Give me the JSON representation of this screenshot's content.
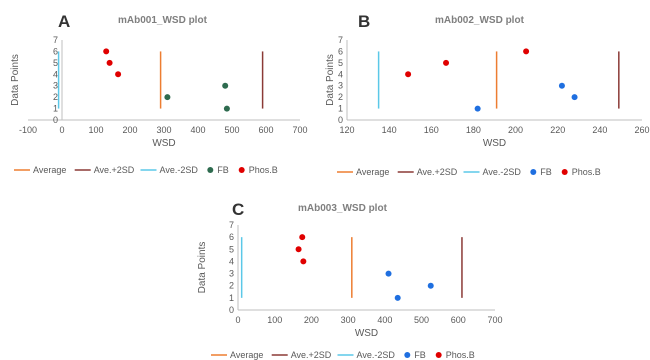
{
  "chart_data": [
    {
      "type": "scatter",
      "panel_label": "A",
      "title": "mAb001_WSD plot",
      "xlabel": "WSD",
      "ylabel": "Data Points",
      "xlim": [
        -100,
        700
      ],
      "ylim": [
        0,
        7
      ],
      "x_ticks": [
        -100,
        0,
        100,
        200,
        300,
        400,
        500,
        600,
        700
      ],
      "y_ticks": [
        0,
        1,
        2,
        3,
        4,
        5,
        6,
        7
      ],
      "grid": false,
      "legend_position": "bottom",
      "vlines": [
        {
          "name": "Average",
          "x": 290,
          "y_range": [
            1,
            6
          ],
          "color": "#ed7d31"
        },
        {
          "name": "Ave.+2SD",
          "x": 590,
          "y_range": [
            1,
            6
          ],
          "color": "#8b3a36"
        },
        {
          "name": "Ave.-2SD",
          "x": -10,
          "y_range": [
            1,
            6
          ],
          "color": "#5bc8e8"
        }
      ],
      "series": [
        {
          "name": "FB",
          "color": "#2e6b4f",
          "points": [
            [
              310,
              2
            ],
            [
              480,
              3
            ],
            [
              485,
              1
            ]
          ]
        },
        {
          "name": "Phos.B",
          "color": "#e00000",
          "points": [
            [
              130,
              6
            ],
            [
              140,
              5
            ],
            [
              165,
              4
            ]
          ]
        }
      ]
    },
    {
      "type": "scatter",
      "panel_label": "B",
      "title": "mAb002_WSD plot",
      "xlabel": "WSD",
      "ylabel": "Data Points",
      "xlim": [
        120,
        260
      ],
      "ylim": [
        0,
        7
      ],
      "x_ticks": [
        120,
        140,
        160,
        180,
        200,
        220,
        240,
        260
      ],
      "y_ticks": [
        0,
        1,
        2,
        3,
        4,
        5,
        6,
        7
      ],
      "grid": false,
      "legend_position": "bottom",
      "vlines": [
        {
          "name": "Average",
          "x": 191,
          "y_range": [
            1,
            6
          ],
          "color": "#ed7d31"
        },
        {
          "name": "Ave.+2SD",
          "x": 249,
          "y_range": [
            1,
            6
          ],
          "color": "#8b3a36"
        },
        {
          "name": "Ave.-2SD",
          "x": 135,
          "y_range": [
            1,
            6
          ],
          "color": "#5bc8e8"
        }
      ],
      "series": [
        {
          "name": "FB",
          "color": "#1f6fe0",
          "points": [
            [
              182,
              1
            ],
            [
              222,
              3
            ],
            [
              228,
              2
            ]
          ]
        },
        {
          "name": "Phos.B",
          "color": "#e00000",
          "points": [
            [
              149,
              4
            ],
            [
              167,
              5
            ],
            [
              205,
              6
            ]
          ]
        }
      ]
    },
    {
      "type": "scatter",
      "panel_label": "C",
      "title": "mAb003_WSD plot",
      "xlabel": "WSD",
      "ylabel": "Data Points",
      "xlim": [
        0,
        700
      ],
      "ylim": [
        0,
        7
      ],
      "x_ticks": [
        0,
        100,
        200,
        300,
        400,
        500,
        600,
        700
      ],
      "y_ticks": [
        0,
        1,
        2,
        3,
        4,
        5,
        6,
        7
      ],
      "grid": false,
      "legend_position": "bottom",
      "vlines": [
        {
          "name": "Average",
          "x": 310,
          "y_range": [
            1,
            6
          ],
          "color": "#ed7d31"
        },
        {
          "name": "Ave.+2SD",
          "x": 610,
          "y_range": [
            1,
            6
          ],
          "color": "#8b3a36"
        },
        {
          "name": "Ave.-2SD",
          "x": 10,
          "y_range": [
            1,
            6
          ],
          "color": "#5bc8e8"
        }
      ],
      "series": [
        {
          "name": "FB",
          "color": "#1f6fe0",
          "points": [
            [
              410,
              3
            ],
            [
              435,
              1
            ],
            [
              525,
              2
            ]
          ]
        },
        {
          "name": "Phos.B",
          "color": "#e00000",
          "points": [
            [
              165,
              5
            ],
            [
              175,
              6
            ],
            [
              178,
              4
            ]
          ]
        }
      ]
    }
  ]
}
